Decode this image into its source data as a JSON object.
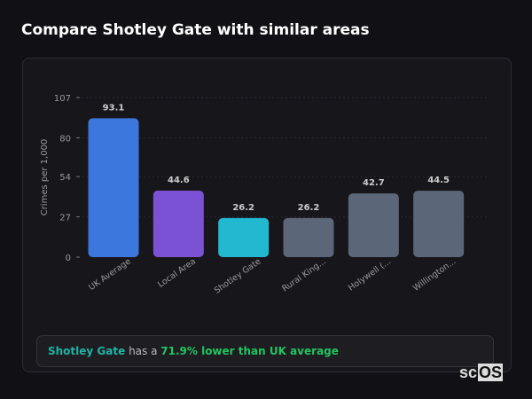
{
  "title": "Compare Shotley Gate with similar areas",
  "chart_data": {
    "type": "bar",
    "categories": [
      "UK Average",
      "Local Area",
      "Shotley Gate",
      "Rural King...",
      "Holywell (...",
      "Willington..."
    ],
    "values": [
      93.1,
      44.6,
      26.2,
      26.2,
      42.7,
      44.5
    ],
    "colors": [
      "#3b77dd",
      "#7b52d4",
      "#22b8cf",
      "#5b6678",
      "#5b6678",
      "#5b6678"
    ],
    "ylabel": "Crimes per 1,000",
    "yticks": [
      0,
      27,
      54,
      80,
      107
    ],
    "ylim": [
      0,
      107
    ],
    "grid": true
  },
  "summary": {
    "area": "Shotley Gate",
    "text": " has a ",
    "highlight": "71.9% lower than UK average"
  },
  "logo": {
    "text1": "sc",
    "text2": "OS"
  }
}
